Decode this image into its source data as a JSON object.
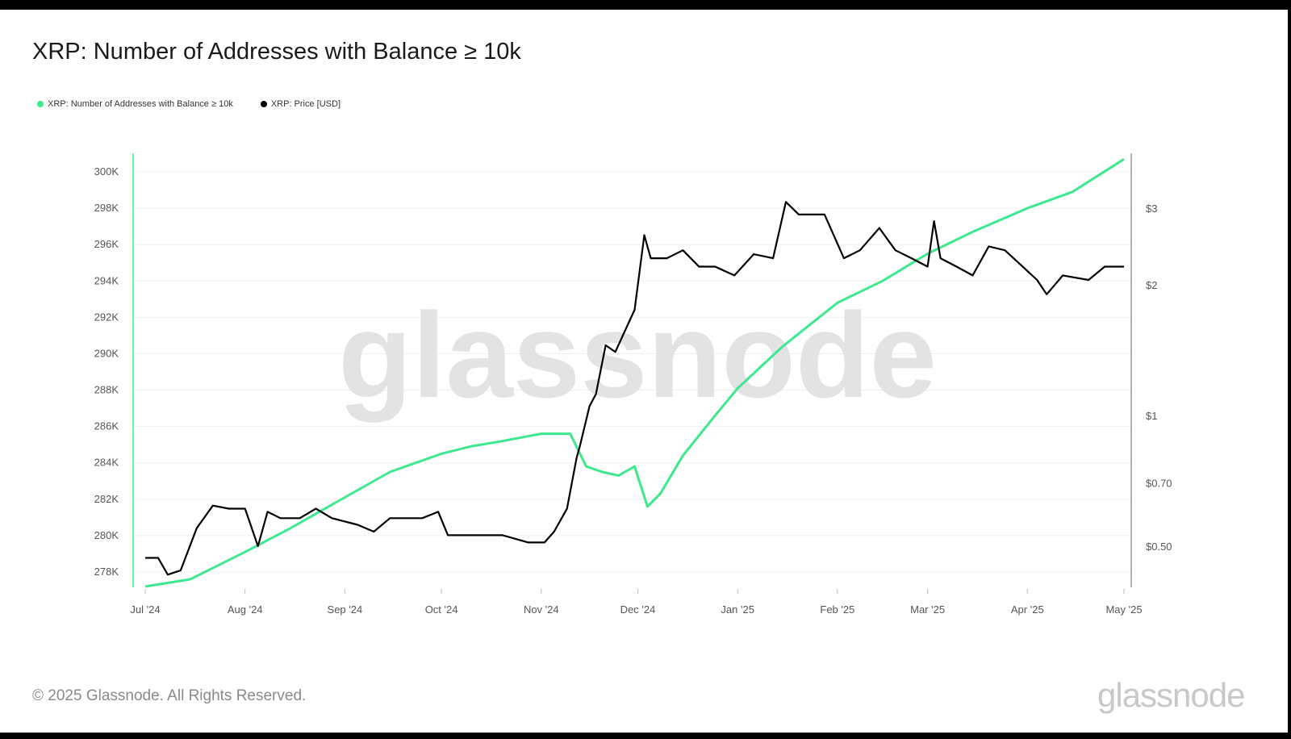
{
  "header": {
    "title": "XRP: Number of Addresses with Balance ≥ 10k"
  },
  "legend": {
    "items": [
      {
        "label": "XRP: Number of Addresses with Balance ≥ 10k",
        "color": "#3de88e"
      },
      {
        "label": "XRP: Price [USD]",
        "color": "#000000"
      }
    ]
  },
  "footer": {
    "copyright": "© 2025 Glassnode. All Rights Reserved.",
    "brand": "glassnode"
  },
  "watermark": "glassnode",
  "chart_data": {
    "type": "line",
    "title": "XRP: Number of Addresses with Balance ≥ 10k",
    "x_ticks": [
      "Jul '24",
      "Aug '24",
      "Sep '24",
      "Oct '24",
      "Nov '24",
      "Dec '24",
      "Jan '25",
      "Feb '25",
      "Mar '25",
      "Apr '25",
      "May '25"
    ],
    "x_range": [
      "2024-07-01",
      "2025-05-01"
    ],
    "y_left_ticks": [
      "278K",
      "280K",
      "282K",
      "284K",
      "286K",
      "288K",
      "290K",
      "292K",
      "294K",
      "296K",
      "298K",
      "300K"
    ],
    "y_left_range": [
      277200,
      300800
    ],
    "y_right_ticks": [
      "$0.50",
      "$0.70",
      "$1",
      "$2",
      "$3"
    ],
    "y_right_values": [
      0.5,
      0.7,
      1,
      2,
      3
    ],
    "y_right_scale": "log",
    "grid": "horizontal",
    "legend_placement": "top-left",
    "series": [
      {
        "name": "XRP: Number of Addresses with Balance ≥ 10k",
        "axis": "left",
        "color": "#3de88e",
        "x": [
          "2024-07-01",
          "2024-07-15",
          "2024-08-01",
          "2024-08-15",
          "2024-09-01",
          "2024-09-15",
          "2024-10-01",
          "2024-10-10",
          "2024-10-20",
          "2024-11-01",
          "2024-11-10",
          "2024-11-15",
          "2024-11-20",
          "2024-11-25",
          "2024-11-30",
          "2024-12-04",
          "2024-12-08",
          "2024-12-15",
          "2024-12-25",
          "2025-01-01",
          "2025-01-15",
          "2025-02-01",
          "2025-02-15",
          "2025-03-01",
          "2025-03-15",
          "2025-04-01",
          "2025-04-15",
          "2025-05-01"
        ],
        "values": [
          277200,
          277600,
          279100,
          280400,
          282100,
          283500,
          284500,
          284900,
          285200,
          285600,
          285600,
          283800,
          283500,
          283300,
          283800,
          281600,
          282300,
          284400,
          286600,
          288100,
          290400,
          292800,
          294000,
          295500,
          296700,
          298000,
          298900,
          300700
        ]
      },
      {
        "name": "XRP: Price [USD]",
        "axis": "right",
        "color": "#000000",
        "x": [
          "2024-07-01",
          "2024-07-05",
          "2024-07-08",
          "2024-07-12",
          "2024-07-17",
          "2024-07-22",
          "2024-07-27",
          "2024-08-01",
          "2024-08-05",
          "2024-08-08",
          "2024-08-12",
          "2024-08-18",
          "2024-08-23",
          "2024-08-28",
          "2024-09-05",
          "2024-09-10",
          "2024-09-15",
          "2024-09-20",
          "2024-09-25",
          "2024-09-30",
          "2024-10-03",
          "2024-10-10",
          "2024-10-20",
          "2024-10-28",
          "2024-11-02",
          "2024-11-05",
          "2024-11-09",
          "2024-11-12",
          "2024-11-13",
          "2024-11-16",
          "2024-11-18",
          "2024-11-21",
          "2024-11-24",
          "2024-11-30",
          "2024-12-03",
          "2024-12-05",
          "2024-12-10",
          "2024-12-15",
          "2024-12-20",
          "2024-12-25",
          "2024-12-31",
          "2025-01-06",
          "2025-01-12",
          "2025-01-16",
          "2025-01-20",
          "2025-01-28",
          "2025-02-03",
          "2025-02-08",
          "2025-02-14",
          "2025-02-19",
          "2025-02-24",
          "2025-03-01",
          "2025-03-03",
          "2025-03-05",
          "2025-03-10",
          "2025-03-15",
          "2025-03-20",
          "2025-03-25",
          "2025-04-01",
          "2025-04-04",
          "2025-04-07",
          "2025-04-12",
          "2025-04-20",
          "2025-04-25",
          "2025-05-01"
        ],
        "values": [
          0.47,
          0.47,
          0.43,
          0.44,
          0.55,
          0.62,
          0.61,
          0.61,
          0.5,
          0.6,
          0.58,
          0.58,
          0.61,
          0.58,
          0.56,
          0.54,
          0.58,
          0.58,
          0.58,
          0.6,
          0.53,
          0.53,
          0.53,
          0.51,
          0.51,
          0.54,
          0.61,
          0.8,
          0.85,
          1.05,
          1.12,
          1.45,
          1.4,
          1.75,
          2.6,
          2.3,
          2.3,
          2.4,
          2.2,
          2.2,
          2.1,
          2.35,
          2.3,
          3.1,
          2.9,
          2.9,
          2.3,
          2.4,
          2.7,
          2.4,
          2.3,
          2.2,
          2.8,
          2.3,
          2.2,
          2.1,
          2.45,
          2.4,
          2.15,
          2.05,
          1.9,
          2.1,
          2.05,
          2.2,
          2.2
        ]
      }
    ]
  }
}
